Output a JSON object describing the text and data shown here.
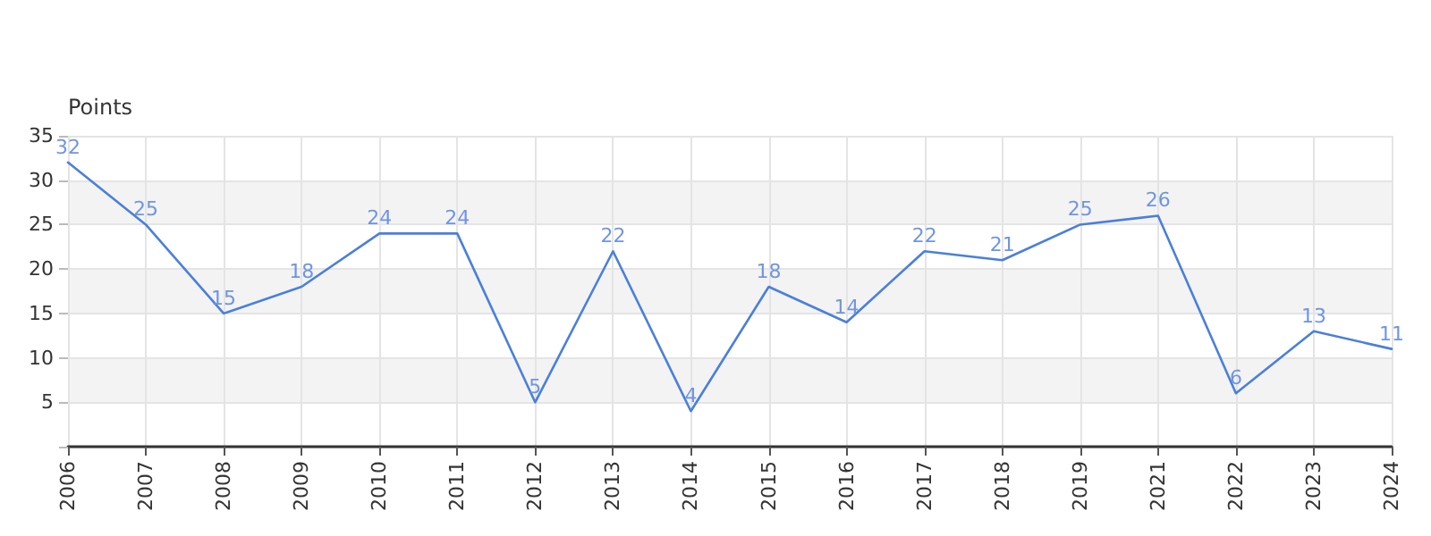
{
  "chart_data": {
    "type": "line",
    "ylabel": "Points",
    "categories": [
      "2006",
      "2007",
      "2008",
      "2009",
      "2010",
      "2011",
      "2012",
      "2013",
      "2014",
      "2015",
      "2016",
      "2017",
      "2018",
      "2019",
      "2021",
      "2022",
      "2023",
      "2024"
    ],
    "series": [
      {
        "color": "#4a7fdc",
        "values": [
          32,
          25,
          15,
          18,
          24,
          24,
          5,
          22,
          4,
          18,
          14,
          22,
          21,
          25,
          26,
          6,
          13,
          11
        ]
      }
    ],
    "ylim": [
      0,
      35
    ],
    "yticks": [
      {
        "value": 0,
        "label": null
      },
      5,
      10,
      15,
      20,
      25,
      30,
      35
    ],
    "grid": true,
    "data_labels": true,
    "marker": "none",
    "line_style": "solid"
  }
}
